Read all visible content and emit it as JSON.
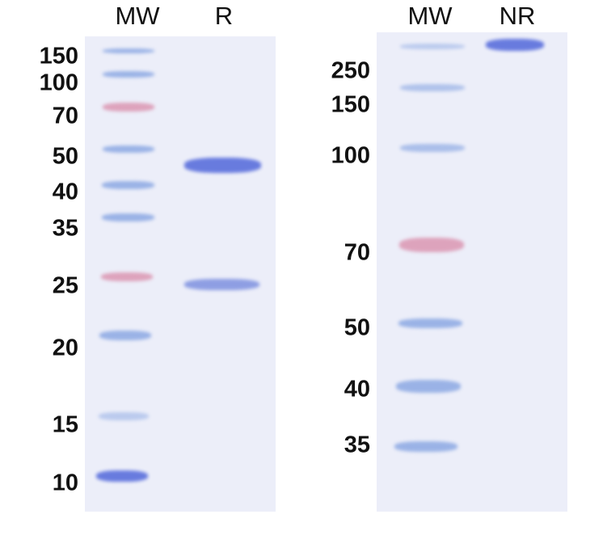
{
  "left_gel": {
    "lanes": [
      "MW",
      "R"
    ],
    "markers": [
      "150",
      "100",
      "70",
      "50",
      "40",
      "35",
      "25",
      "20",
      "15",
      "10"
    ]
  },
  "right_gel": {
    "lanes": [
      "MW",
      "NR"
    ],
    "markers": [
      "250",
      "150",
      "100",
      "70",
      "50",
      "40",
      "35"
    ]
  },
  "colors": {
    "marker_blue": "#7f9fe0",
    "marker_pink": "#d98aa8",
    "sample_band": "#5a6fdc",
    "gel_bg": "#eceef9"
  }
}
